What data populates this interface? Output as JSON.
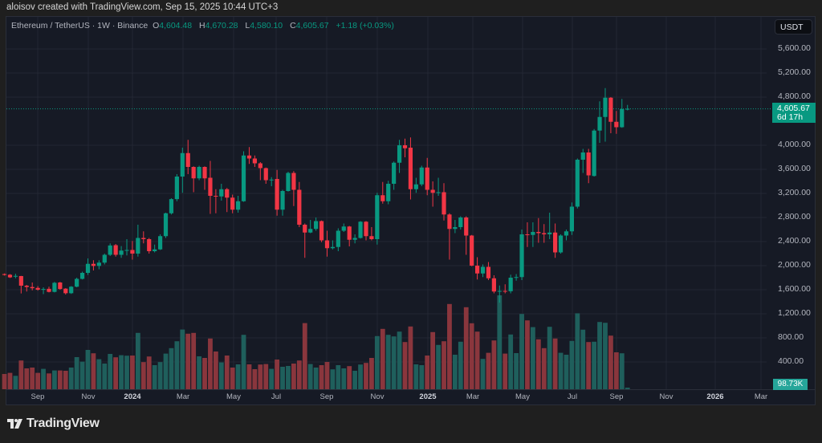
{
  "header": {
    "attribution": "aloisov created with TradingView.com, Sep 15, 2025 10:44 UTC+3"
  },
  "legend": {
    "symbol": "Ethereum / TetherUS · 1W · Binance",
    "o_label": "O",
    "open": "4,604.48",
    "h_label": "H",
    "high": "4,670.28",
    "l_label": "L",
    "low": "4,580.10",
    "c_label": "C",
    "close": "4,605.67",
    "change": "+1.18 (+0.03%)"
  },
  "currency_button": "USDT",
  "last_price": {
    "price": "4,605.67",
    "countdown": "6d 17h"
  },
  "last_volume": "98.73K",
  "colors": {
    "up": "#089981",
    "down": "#f23645",
    "vol_up": "#1f5f5c",
    "vol_down": "#8a363d",
    "background": "#161a25"
  },
  "logo": {
    "text": "TradingView",
    "icon": "tradingview-logo-icon"
  },
  "chart_data": {
    "type": "candlestick",
    "interval": "1W",
    "ylim": [
      0,
      6000
    ],
    "y_ticks": [
      "5,600.00",
      "5,200.00",
      "4,800.00",
      "4,000.00",
      "3,600.00",
      "3,200.00",
      "2,800.00",
      "2,400.00",
      "2,000.00",
      "1,600.00",
      "1,200.00",
      "800.00",
      "400.00"
    ],
    "y_tick_values": [
      5600,
      5200,
      4800,
      4000,
      3600,
      3200,
      2800,
      2400,
      2000,
      1600,
      1200,
      800,
      400
    ],
    "x_ticks": [
      {
        "label": "Sep",
        "bold": false
      },
      {
        "label": "Nov",
        "bold": false
      },
      {
        "label": "2024",
        "bold": true
      },
      {
        "label": "Mar",
        "bold": false
      },
      {
        "label": "May",
        "bold": false
      },
      {
        "label": "Jul",
        "bold": false
      },
      {
        "label": "Sep",
        "bold": false
      },
      {
        "label": "Nov",
        "bold": false
      },
      {
        "label": "2025",
        "bold": true
      },
      {
        "label": "Mar",
        "bold": false
      },
      {
        "label": "May",
        "bold": false
      },
      {
        "label": "Jul",
        "bold": false
      },
      {
        "label": "Sep",
        "bold": false
      },
      {
        "label": "Nov",
        "bold": false
      },
      {
        "label": "2026",
        "bold": true
      },
      {
        "label": "Mar",
        "bold": false
      }
    ],
    "grid": true,
    "volume_unit": "K",
    "ohlcv": [
      [
        1860,
        1870,
        1835,
        1845,
        950
      ],
      [
        1849,
        1860,
        1795,
        1805,
        1020
      ],
      [
        1825,
        1865,
        1790,
        1830,
        835
      ],
      [
        1827,
        1830,
        1538,
        1667,
        1790
      ],
      [
        1667,
        1680,
        1570,
        1645,
        1300
      ],
      [
        1645,
        1720,
        1590,
        1625,
        1350
      ],
      [
        1630,
        1660,
        1585,
        1600,
        1020
      ],
      [
        1605,
        1640,
        1527,
        1612,
        1270
      ],
      [
        1615,
        1650,
        1555,
        1564,
        985
      ],
      [
        1564,
        1730,
        1555,
        1715,
        1170
      ],
      [
        1720,
        1730,
        1600,
        1612,
        1170
      ],
      [
        1618,
        1625,
        1520,
        1542,
        1150
      ],
      [
        1542,
        1660,
        1530,
        1650,
        1350
      ],
      [
        1650,
        1800,
        1640,
        1780,
        2000
      ],
      [
        1780,
        1900,
        1770,
        1880,
        1720
      ],
      [
        1880,
        2120,
        1845,
        2030,
        2450
      ],
      [
        2030,
        2090,
        1920,
        1995,
        2240
      ],
      [
        1995,
        2090,
        1940,
        2050,
        1870
      ],
      [
        2050,
        2200,
        2020,
        2180,
        1600
      ],
      [
        2180,
        2370,
        2160,
        2335,
        2200
      ],
      [
        2340,
        2360,
        2150,
        2180,
        1990
      ],
      [
        2180,
        2325,
        2130,
        2250,
        2120
      ],
      [
        2250,
        2440,
        2170,
        2260,
        2090
      ],
      [
        2260,
        2410,
        2100,
        2200,
        2100
      ],
      [
        2200,
        2680,
        2150,
        2460,
        3510
      ],
      [
        2460,
        2570,
        2370,
        2440,
        1690
      ],
      [
        2440,
        2460,
        2200,
        2240,
        2040
      ],
      [
        2240,
        2350,
        2220,
        2270,
        1500
      ],
      [
        2270,
        2520,
        2260,
        2490,
        1690
      ],
      [
        2490,
        2880,
        2460,
        2870,
        2220
      ],
      [
        2870,
        3120,
        2850,
        3105,
        2560
      ],
      [
        3105,
        3520,
        3070,
        3480,
        2990
      ],
      [
        3480,
        3960,
        3210,
        3870,
        3720
      ],
      [
        3870,
        4090,
        3520,
        3640,
        3460
      ],
      [
        3640,
        3650,
        3220,
        3450,
        3510
      ],
      [
        3450,
        3660,
        3420,
        3640,
        2050
      ],
      [
        3640,
        3650,
        3260,
        3450,
        1950
      ],
      [
        3460,
        3740,
        2860,
        3160,
        3160
      ],
      [
        3160,
        3270,
        2870,
        3150,
        2350
      ],
      [
        3150,
        3360,
        3080,
        3270,
        1670
      ],
      [
        3270,
        3290,
        2890,
        3130,
        2100
      ],
      [
        3130,
        3180,
        2870,
        2930,
        1350
      ],
      [
        2930,
        3160,
        2880,
        3070,
        1550
      ],
      [
        3070,
        3900,
        3060,
        3830,
        3390
      ],
      [
        3830,
        3970,
        3690,
        3780,
        1550
      ],
      [
        3780,
        3830,
        3640,
        3700,
        1250
      ],
      [
        3700,
        3720,
        3420,
        3620,
        1540
      ],
      [
        3620,
        3630,
        3360,
        3420,
        1570
      ],
      [
        3420,
        3470,
        3320,
        3430,
        1270
      ],
      [
        3440,
        3590,
        2830,
        2930,
        1850
      ],
      [
        2930,
        3260,
        2830,
        3240,
        1400
      ],
      [
        3240,
        3560,
        3230,
        3540,
        1450
      ],
      [
        3540,
        3570,
        2990,
        3260,
        1600
      ],
      [
        3260,
        3390,
        2640,
        2680,
        1790
      ],
      [
        2680,
        2700,
        2130,
        2550,
        4120
      ],
      [
        2550,
        2760,
        2540,
        2610,
        1570
      ],
      [
        2610,
        2800,
        2580,
        2740,
        1350
      ],
      [
        2740,
        2750,
        2390,
        2420,
        1500
      ],
      [
        2420,
        2580,
        2150,
        2290,
        1700
      ],
      [
        2290,
        2420,
        2270,
        2310,
        1240
      ],
      [
        2310,
        2620,
        2240,
        2580,
        1500
      ],
      [
        2580,
        2700,
        2560,
        2650,
        1300
      ],
      [
        2650,
        2660,
        2320,
        2430,
        1440
      ],
      [
        2430,
        2520,
        2370,
        2460,
        1150
      ],
      [
        2460,
        2740,
        2450,
        2730,
        1540
      ],
      [
        2730,
        2740,
        2420,
        2490,
        1640
      ],
      [
        2490,
        2640,
        2420,
        2440,
        1950
      ],
      [
        2440,
        3210,
        2350,
        3170,
        3310
      ],
      [
        3170,
        3390,
        3030,
        3070,
        3760
      ],
      [
        3070,
        3410,
        3020,
        3360,
        3390
      ],
      [
        3360,
        3730,
        3260,
        3710,
        3290
      ],
      [
        3710,
        4090,
        3540,
        4000,
        3590
      ],
      [
        4000,
        4110,
        3800,
        3950,
        2940
      ],
      [
        3960,
        4130,
        3100,
        3270,
        3910
      ],
      [
        3270,
        3460,
        3210,
        3350,
        1550
      ],
      [
        3350,
        3660,
        3320,
        3630,
        1500
      ],
      [
        3630,
        3790,
        3170,
        3260,
        2100
      ],
      [
        3260,
        3400,
        2980,
        3210,
        3560
      ],
      [
        3210,
        3460,
        3160,
        3220,
        2760
      ],
      [
        3220,
        3370,
        2750,
        2850,
        2990
      ],
      [
        2850,
        2870,
        2100,
        2610,
        5310
      ],
      [
        2610,
        2760,
        2540,
        2640,
        2150
      ],
      [
        2640,
        2820,
        2600,
        2800,
        2960
      ],
      [
        2800,
        2820,
        2180,
        2500,
        5110
      ],
      [
        2500,
        2510,
        1990,
        2000,
        4110
      ],
      [
        2000,
        2140,
        1770,
        1870,
        3590
      ],
      [
        1870,
        2020,
        1810,
        1980,
        1890
      ],
      [
        1980,
        2060,
        1760,
        1790,
        2270
      ],
      [
        1790,
        1840,
        1540,
        1570,
        3040
      ],
      [
        1575,
        1670,
        1385,
        1580,
        5850
      ],
      [
        1580,
        1690,
        1540,
        1575,
        2220
      ],
      [
        1575,
        1850,
        1540,
        1800,
        3410
      ],
      [
        1800,
        1860,
        1750,
        1810,
        2250
      ],
      [
        1810,
        2600,
        1760,
        2520,
        4690
      ],
      [
        2520,
        2720,
        2310,
        2510,
        4290
      ],
      [
        2510,
        2720,
        2310,
        2560,
        3870
      ],
      [
        2560,
        2790,
        2380,
        2540,
        3110
      ],
      [
        2540,
        2690,
        2380,
        2520,
        2560
      ],
      [
        2520,
        2880,
        2440,
        2550,
        3890
      ],
      [
        2550,
        2700,
        2130,
        2220,
        3160
      ],
      [
        2220,
        2520,
        2200,
        2500,
        2270
      ],
      [
        2500,
        2600,
        2420,
        2570,
        2150
      ],
      [
        2570,
        3050,
        2510,
        2980,
        3010
      ],
      [
        2980,
        3780,
        2950,
        3760,
        4730
      ],
      [
        3760,
        3940,
        3540,
        3880,
        3710
      ],
      [
        3880,
        3940,
        3370,
        3500,
        2940
      ],
      [
        3490,
        4270,
        3480,
        4244,
        2960
      ],
      [
        4244,
        4730,
        4040,
        4470,
        4190
      ],
      [
        4470,
        4950,
        4060,
        4790,
        4140
      ],
      [
        4790,
        4800,
        4200,
        4390,
        3340
      ],
      [
        4390,
        4570,
        4190,
        4300,
        2300
      ],
      [
        4300,
        4770,
        4290,
        4600,
        2240
      ],
      [
        4604.48,
        4670.28,
        4580.1,
        4605.67,
        98.73
      ]
    ]
  }
}
